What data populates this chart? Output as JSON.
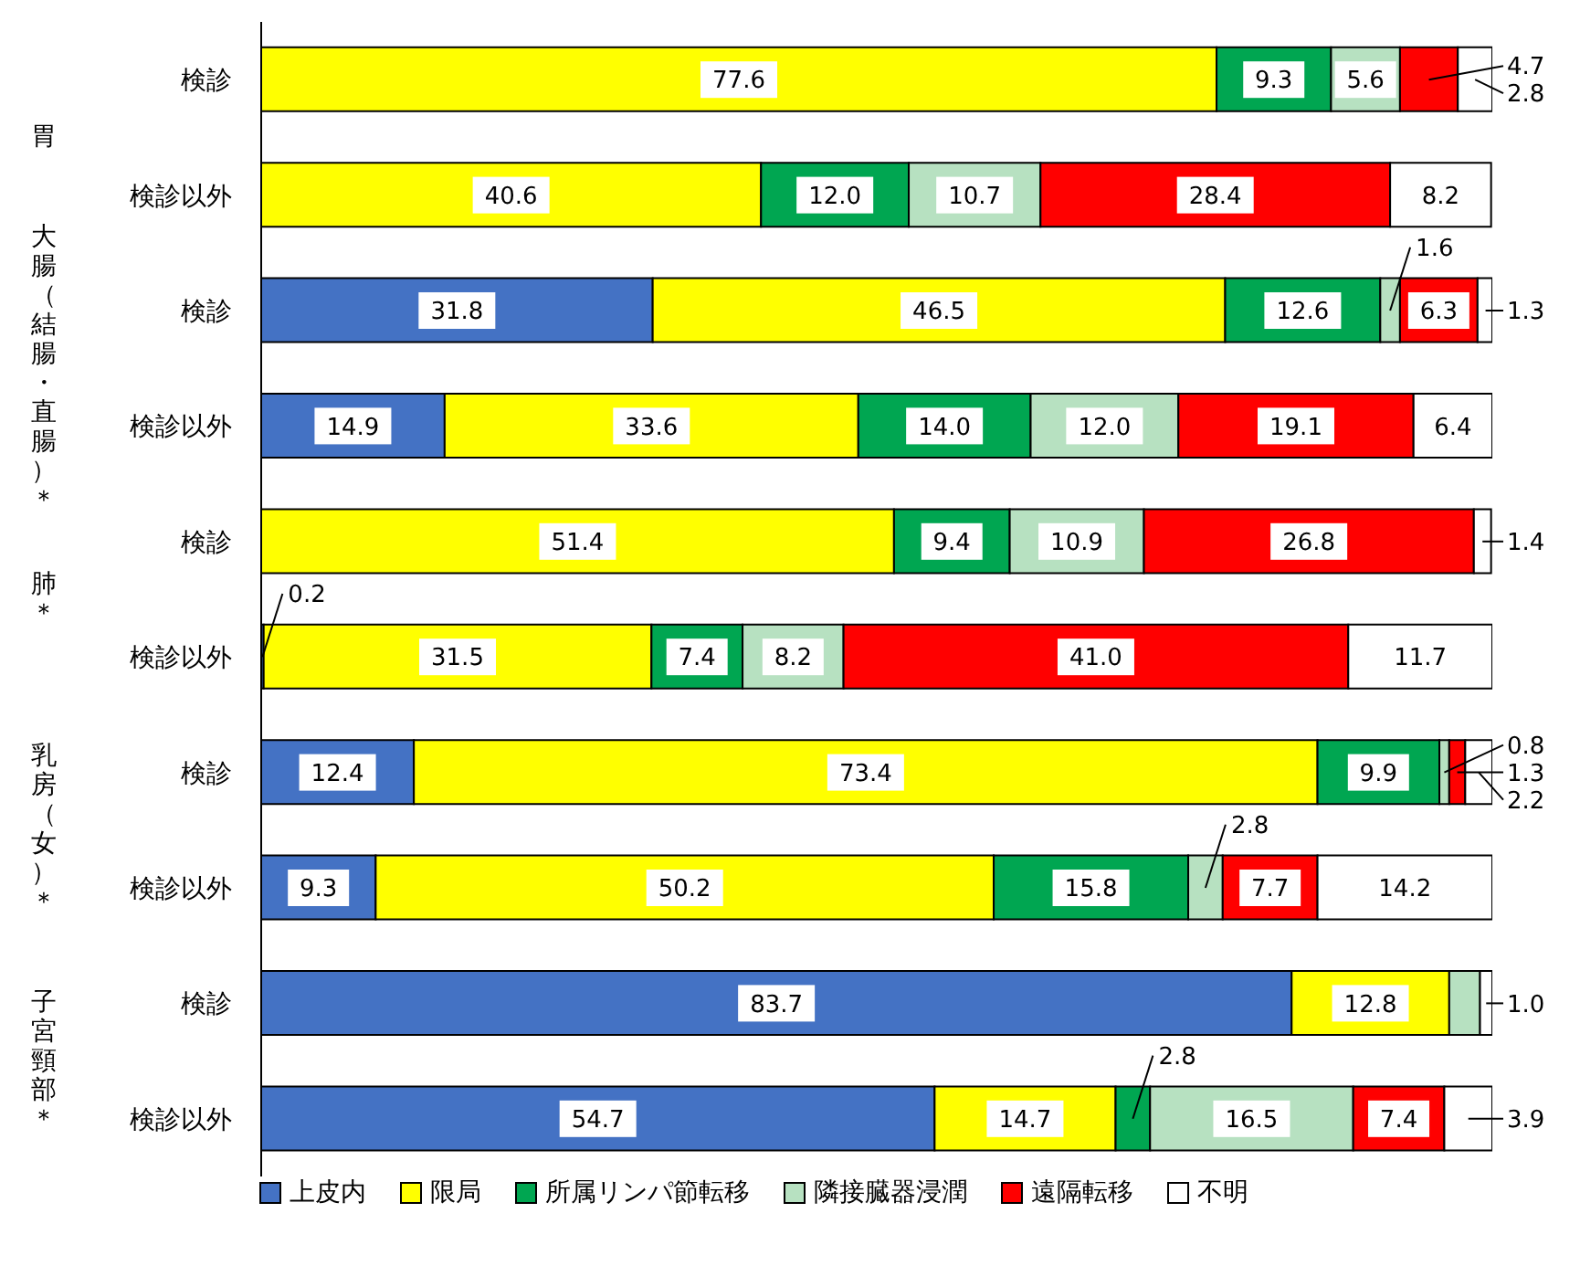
{
  "chart_data": {
    "type": "bar",
    "orientation": "horizontal",
    "stacked": true,
    "categories": [
      "検診",
      "検診以外",
      "検診",
      "検診以外",
      "検診",
      "検診以外",
      "検診",
      "検診以外",
      "検診",
      "検診以外"
    ],
    "annotations": [
      "胃",
      "大腸（結腸・直腸）＊",
      "肺＊",
      "乳房（女）＊",
      "子宮頸部＊"
    ],
    "xlim": [
      0,
      100
    ],
    "legend": "bottom",
    "tick_labels": "y",
    "series": [
      {
        "name": "上皮内",
        "color": "#4472c4",
        "values": [
          null,
          null,
          31.8,
          14.9,
          null,
          0.2,
          12.4,
          9.3,
          83.7,
          54.7
        ],
        "value_labels": [
          null,
          null,
          "31.8",
          "14.9",
          null,
          "0.2",
          "12.4",
          "9.3",
          "83.7",
          "54.7"
        ]
      },
      {
        "name": "限局",
        "color": "#ffff00",
        "values": [
          77.6,
          40.6,
          46.5,
          33.6,
          51.4,
          31.5,
          73.4,
          50.2,
          12.8,
          14.7
        ],
        "value_labels": [
          "77.6",
          "40.6",
          "46.5",
          "33.6",
          "51.4",
          "31.5",
          "73.4",
          "50.2",
          "12.8",
          "14.7"
        ]
      },
      {
        "name": "所属リンパ節転移",
        "color": "#00a651",
        "values": [
          9.3,
          12.0,
          12.6,
          14.0,
          9.4,
          7.4,
          9.9,
          15.8,
          null,
          2.8
        ],
        "value_labels": [
          "9.3",
          "12.0",
          "12.6",
          "14.0",
          "9.4",
          "7.4",
          "9.9",
          "15.8",
          null,
          "2.8"
        ]
      },
      {
        "name": "隣接臓器浸潤",
        "color": "#b7e1c1",
        "values": [
          5.6,
          10.7,
          1.6,
          12.0,
          10.9,
          8.2,
          0.8,
          2.8,
          2.5,
          16.5
        ],
        "value_labels": [
          "5.6",
          "10.7",
          "1.6",
          "12.0",
          "10.9",
          "8.2",
          "0.8",
          "2.8",
          null,
          "16.5"
        ]
      },
      {
        "name": "遠隔転移",
        "color": "#ff0000",
        "values": [
          4.7,
          28.4,
          6.3,
          19.1,
          26.8,
          41.0,
          1.3,
          7.7,
          null,
          7.4
        ],
        "value_labels": [
          "4.7",
          "28.4",
          "6.3",
          "19.1",
          "26.8",
          "41.0",
          "1.3",
          "7.7",
          null,
          "7.4"
        ]
      },
      {
        "name": "不明",
        "color": "#ffffff",
        "values": [
          2.8,
          8.2,
          1.3,
          6.4,
          1.4,
          11.7,
          2.2,
          14.2,
          1.0,
          3.9
        ],
        "value_labels": [
          "2.8",
          "8.2",
          "1.3",
          "6.4",
          "1.4",
          "11.7",
          "2.2",
          "14.2",
          "1.0",
          "3.9"
        ]
      }
    ]
  }
}
